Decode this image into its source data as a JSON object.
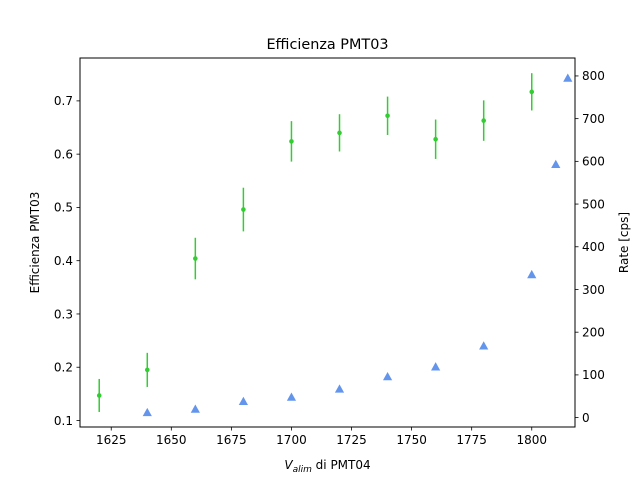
{
  "chart_data": {
    "type": "scatter",
    "title": "Efficienza PMT03",
    "xlabel": {
      "main": "V",
      "sub": "alim",
      "rest": " di PMT04"
    },
    "ylabel_left": "Efficienza PMT03",
    "ylabel_right": "Rate [cps]",
    "xlim": [
      1612,
      1818
    ],
    "ylim_left": [
      0.0878,
      0.7805
    ],
    "ylim_right": [
      -22,
      842
    ],
    "x_ticks": [
      1625,
      1650,
      1675,
      1700,
      1725,
      1750,
      1775,
      1800
    ],
    "y_left_ticks": [
      0.1,
      0.2,
      0.3,
      0.4,
      0.5,
      0.6,
      0.7
    ],
    "y_right_ticks": [
      0,
      100,
      200,
      300,
      400,
      500,
      600,
      700,
      800
    ],
    "grid": false,
    "series": [
      {
        "axis": "left",
        "marker": "circle",
        "color": "#33cc33",
        "points": [
          {
            "x": 1620,
            "y": 0.147,
            "err": 0.031
          },
          {
            "x": 1640,
            "y": 0.195,
            "err": 0.032
          },
          {
            "x": 1660,
            "y": 0.404,
            "err": 0.039
          },
          {
            "x": 1680,
            "y": 0.496,
            "err": 0.041
          },
          {
            "x": 1700,
            "y": 0.624,
            "err": 0.038
          },
          {
            "x": 1720,
            "y": 0.64,
            "err": 0.035
          },
          {
            "x": 1740,
            "y": 0.672,
            "err": 0.036
          },
          {
            "x": 1760,
            "y": 0.628,
            "err": 0.037
          },
          {
            "x": 1780,
            "y": 0.663,
            "err": 0.038
          },
          {
            "x": 1800,
            "y": 0.717,
            "err": 0.035
          }
        ]
      },
      {
        "axis": "right",
        "marker": "triangle",
        "color": "#6495ed",
        "points": [
          {
            "x": 1640,
            "y": 12
          },
          {
            "x": 1660,
            "y": 20
          },
          {
            "x": 1680,
            "y": 38
          },
          {
            "x": 1700,
            "y": 48
          },
          {
            "x": 1720,
            "y": 67
          },
          {
            "x": 1740,
            "y": 96
          },
          {
            "x": 1760,
            "y": 119
          },
          {
            "x": 1780,
            "y": 168
          },
          {
            "x": 1800,
            "y": 335
          },
          {
            "x": 1810,
            "y": 593
          },
          {
            "x": 1815,
            "y": 795
          }
        ]
      }
    ]
  }
}
